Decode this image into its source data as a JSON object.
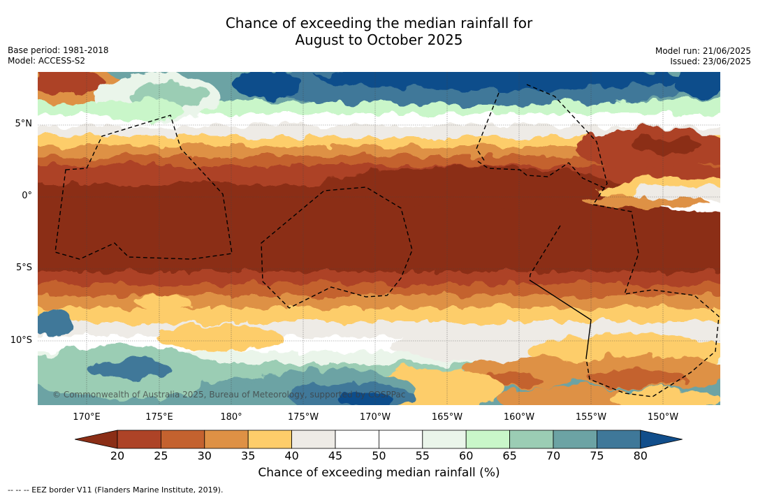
{
  "title_line1": "Chance of exceeding the median rainfall for",
  "title_line2": "August to October 2025",
  "base_period": "Base period: 1981-2018",
  "model": "Model: ACCESS-S2",
  "model_run": "Model run: 21/06/2025",
  "issued": "Issued: 23/06/2025",
  "copyright": "© Commonwealth of Australia 2025, Bureau of Meteorology, supported by COSPPac",
  "footnote": "--  --  -- EEZ border V11 (Flanders Marine Institute, 2019).",
  "latitude_labels": [
    "5°N",
    "0°",
    "5°S",
    "10°S"
  ],
  "longitude_labels": [
    "170°E",
    "175°E",
    "180°",
    "175°W",
    "170°W",
    "165°W",
    "160°W",
    "155°W",
    "150°W"
  ],
  "colorbar": {
    "label": "Chance of exceeding median rainfall (%)",
    "ticks": [
      "20",
      "25",
      "30",
      "35",
      "40",
      "45",
      "50",
      "55",
      "60",
      "65",
      "70",
      "75",
      "80"
    ],
    "colors": [
      "#8b2e16",
      "#ad4327",
      "#c4622f",
      "#de9145",
      "#fdcd6a",
      "#eeebe6",
      "#ffffff",
      "#ffffff",
      "#eaf5ea",
      "#c9f6c9",
      "#9bcdb4",
      "#6ca3a4",
      "#3f7899",
      "#114e8b"
    ]
  }
}
